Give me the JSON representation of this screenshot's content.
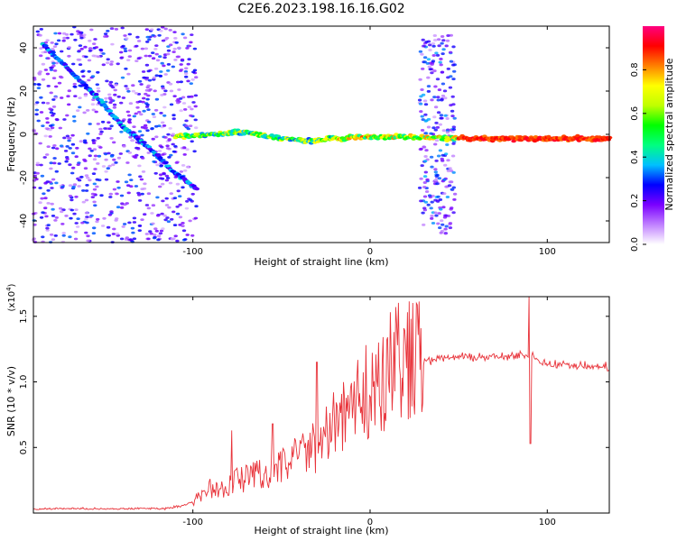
{
  "page_title": "C2E6.2023.198.16.16.G02",
  "chart_data": [
    {
      "type": "heatmap",
      "title": "C2E6.2023.198.16.16.G02",
      "xlabel": "Height of straight line (km)",
      "ylabel": "Frequency (Hz)",
      "xlim": [
        -190,
        135
      ],
      "ylim": [
        -50,
        50
      ],
      "x_ticks": [
        -100,
        0,
        100
      ],
      "x_tick_labels": [
        "-100",
        "0",
        "100"
      ],
      "y_ticks": [
        -40,
        -20,
        0,
        20,
        40
      ],
      "y_tick_labels": [
        "-40",
        "-20",
        "0",
        "20",
        "40"
      ],
      "colorbar": {
        "label": "Normalized spectral amplitude",
        "range": [
          0,
          1
        ],
        "ticks": [
          0.0,
          0.2,
          0.4,
          0.6,
          0.8
        ],
        "tick_labels": [
          "0.0",
          "0.2",
          "0.4",
          "0.6",
          "0.8"
        ],
        "colors": [
          "#ffffff",
          "#c080ff",
          "#7a00ff",
          "#0000ff",
          "#00c0ff",
          "#00ff80",
          "#00ff00",
          "#c0ff00",
          "#ffff00",
          "#ff8000",
          "#ff0000",
          "#ff0080"
        ]
      },
      "features": [
        {
          "name": "diagonal track",
          "x": [
            -185,
            -170,
            -155,
            -140,
            -125,
            -110,
            -98
          ],
          "y": [
            42,
            30,
            18,
            4,
            -6,
            -18,
            -25
          ],
          "amplitude": 0.35
        },
        {
          "name": "near-zero band",
          "x": [
            -110,
            -90,
            -70,
            -50,
            -35,
            -20,
            0,
            20,
            50,
            80,
            100,
            135
          ],
          "y": [
            -1,
            0,
            1,
            -2,
            -3,
            -2,
            -1,
            -1,
            -2,
            -2,
            -2,
            -2
          ],
          "amplitude": 0.75
        }
      ]
    },
    {
      "type": "line",
      "xlabel": "Height of straight line (km)",
      "ylabel": "SNR (10 * v/v)",
      "y_multiplier_label": "(x10",
      "y_multiplier_exp": "4",
      "xlim": [
        -190,
        135
      ],
      "ylim": [
        0,
        16500
      ],
      "x_ticks": [
        -100,
        0,
        100
      ],
      "x_tick_labels": [
        "-100",
        "0",
        "100"
      ],
      "y_ticks": [
        5000,
        10000,
        15000
      ],
      "y_tick_labels": [
        "0.5",
        "1.0",
        "1.5"
      ],
      "series": [
        {
          "name": "SNR",
          "color": "#e8333a",
          "x": [
            -190,
            -170,
            -150,
            -130,
            -115,
            -105,
            -95,
            -90,
            -85,
            -80,
            -75,
            -70,
            -65,
            -60,
            -55,
            -50,
            -45,
            -40,
            -35,
            -30,
            -25,
            -20,
            -15,
            -10,
            -5,
            0,
            5,
            10,
            15,
            20,
            25,
            30,
            40,
            50,
            60,
            70,
            80,
            85,
            88,
            90,
            92,
            95,
            100,
            110,
            120,
            135
          ],
          "y": [
            300,
            350,
            300,
            350,
            350,
            600,
            1200,
            1800,
            1600,
            2000,
            2400,
            2600,
            2800,
            3000,
            3200,
            3500,
            3800,
            4200,
            4500,
            4800,
            5500,
            6500,
            7000,
            8000,
            9000,
            9500,
            10000,
            10500,
            10800,
            11000,
            11300,
            11500,
            11800,
            11900,
            11900,
            11900,
            11900,
            12000,
            12200,
            11500,
            12200,
            11600,
            11400,
            11300,
            11200,
            11100
          ]
        }
      ],
      "spikes": [
        {
          "x": -78,
          "y": 6300
        },
        {
          "x": -55,
          "y": 6800
        },
        {
          "x": -30,
          "y": 11500
        },
        {
          "x": 5,
          "y": 13000
        },
        {
          "x": 10,
          "y": 13400
        },
        {
          "x": 90,
          "y": 16500
        },
        {
          "x": 90.5,
          "y": 5300
        }
      ]
    }
  ]
}
